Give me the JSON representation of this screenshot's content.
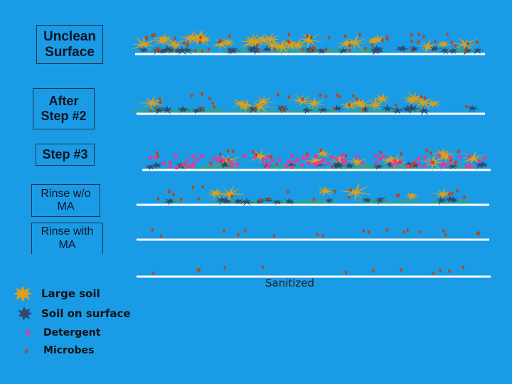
{
  "stages": {
    "unclean": "Unclean Surface",
    "after_step2": "After Step #2",
    "step3": "Step #3",
    "rinse_without": "Rinse w/o MA",
    "rinse_with": "Rinse with MA"
  },
  "caption": "Sanitized",
  "legend": [
    {
      "label": "Large soil",
      "icon": "large-soil-icon"
    },
    {
      "label": "Soil on surface",
      "icon": "surface-soil-icon"
    },
    {
      "label": "Detergent",
      "icon": "detergent-icon"
    },
    {
      "label": "Microbes",
      "icon": "microbe-icon"
    }
  ],
  "colors": {
    "background": "#1a9be6",
    "surface_line": "#ffffff",
    "large_soil": "#d8a01c",
    "surface_soil": "#2e4a6e",
    "detergent": "#e23a9a",
    "microbe": "#b5481a"
  }
}
